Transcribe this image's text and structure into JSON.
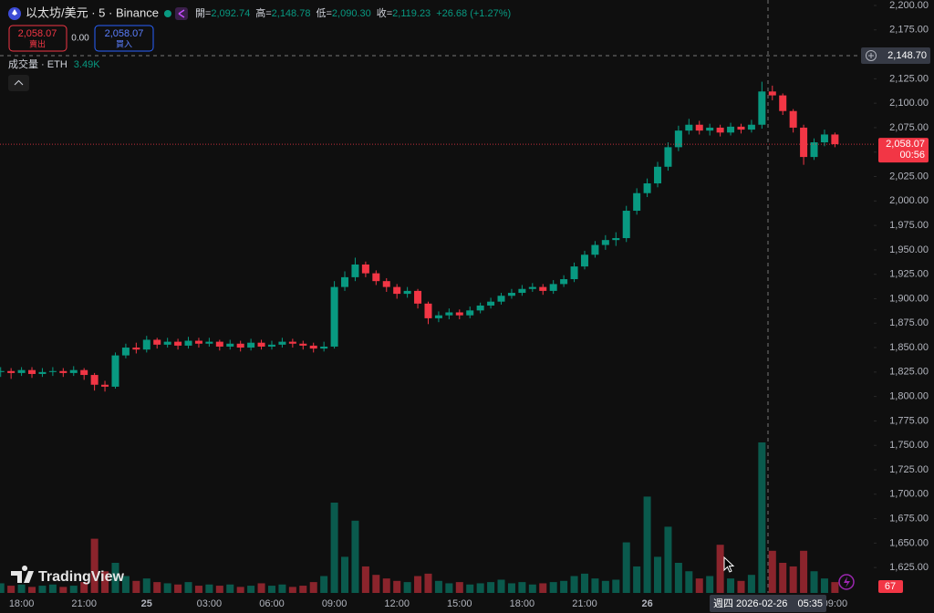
{
  "chart_data": {
    "type": "candlestick",
    "title": "以太坊/美元 · 5 · Binance",
    "header_stats": [
      {
        "label": "開=",
        "value": "2,092.74"
      },
      {
        "label": "高=",
        "value": "2,148.78"
      },
      {
        "label": "低=",
        "value": "2,090.30"
      },
      {
        "label": "收=",
        "value": "2,119.23"
      }
    ],
    "change": "+26.68 (+1.27%)",
    "sell": {
      "price": "2,058.07",
      "label": "賣出"
    },
    "spread": "0.00",
    "buy": {
      "price": "2,058.07",
      "label": "買入"
    },
    "volume_legend": {
      "label": "成交量 · ETH",
      "value": "3.49K"
    },
    "up_color": "#089981",
    "down_color": "#f23645",
    "categories": [
      null,
      null,
      "18:00",
      null,
      null,
      null,
      null,
      null,
      "21:00",
      null,
      null,
      null,
      null,
      null,
      "25",
      null,
      null,
      null,
      null,
      null,
      "03:00",
      null,
      null,
      null,
      null,
      null,
      "06:00",
      null,
      null,
      null,
      null,
      null,
      "09:00",
      null,
      null,
      null,
      null,
      null,
      "12:00",
      null,
      null,
      null,
      null,
      null,
      "15:00",
      null,
      null,
      null,
      null,
      null,
      "18:00",
      null,
      null,
      null,
      null,
      null,
      "21:00",
      null,
      null,
      null,
      null,
      null,
      "26",
      null,
      null,
      null,
      null,
      null,
      null,
      null,
      null,
      null,
      null,
      null,
      null,
      null,
      null,
      null,
      null,
      null,
      "09:00"
    ],
    "open": [
      1825,
      1826,
      1824,
      1827,
      1823,
      1825,
      1826,
      1824,
      1827,
      1822,
      1812,
      1810,
      1842,
      1850,
      1848,
      1858,
      1853,
      1856,
      1852,
      1857,
      1854,
      1856,
      1851,
      1854,
      1850,
      1855,
      1851,
      1853,
      1856,
      1854,
      1852,
      1849,
      1851,
      1912,
      1922,
      1935,
      1926,
      1918,
      1912,
      1905,
      1908,
      1895,
      1880,
      1883,
      1886,
      1883,
      1888,
      1893,
      1897,
      1903,
      1906,
      1910,
      1912,
      1908,
      1915,
      1920,
      1933,
      1945,
      1955,
      1960,
      1962,
      1990,
      2008,
      2018,
      2035,
      2055,
      2072,
      2078,
      2072,
      2075,
      2070,
      2076,
      2073,
      2078,
      2112,
      2108,
      2092,
      2075,
      2045,
      2060,
      2068
    ],
    "high": [
      1830,
      1829,
      1830,
      1830,
      1829,
      1830,
      1829,
      1831,
      1829,
      1824,
      1816,
      1845,
      1854,
      1855,
      1862,
      1860,
      1860,
      1859,
      1861,
      1860,
      1860,
      1858,
      1858,
      1857,
      1859,
      1858,
      1857,
      1860,
      1859,
      1857,
      1855,
      1856,
      1918,
      1928,
      1942,
      1938,
      1929,
      1921,
      1915,
      1912,
      1910,
      1897,
      1887,
      1890,
      1889,
      1892,
      1896,
      1901,
      1906,
      1910,
      1914,
      1916,
      1915,
      1919,
      1924,
      1937,
      1949,
      1959,
      1965,
      1968,
      1995,
      2013,
      2023,
      2040,
      2060,
      2077,
      2084,
      2082,
      2079,
      2078,
      2080,
      2079,
      2083,
      2122,
      2118,
      2110,
      2094,
      2078,
      2064,
      2073,
      2070
    ],
    "low": [
      1820,
      1818,
      1821,
      1819,
      1820,
      1821,
      1820,
      1821,
      1817,
      1806,
      1805,
      1808,
      1839,
      1844,
      1845,
      1849,
      1850,
      1848,
      1849,
      1850,
      1851,
      1847,
      1848,
      1846,
      1847,
      1848,
      1848,
      1850,
      1850,
      1848,
      1845,
      1846,
      1849,
      1908,
      1918,
      1922,
      1914,
      1907,
      1900,
      1901,
      1890,
      1874,
      1876,
      1879,
      1879,
      1880,
      1885,
      1890,
      1894,
      1900,
      1903,
      1907,
      1904,
      1905,
      1912,
      1917,
      1930,
      1942,
      1950,
      1954,
      1958,
      1986,
      2004,
      2014,
      2031,
      2051,
      2068,
      2068,
      2067,
      2066,
      2067,
      2069,
      2070,
      2074,
      2103,
      2088,
      2070,
      2037,
      2042,
      2056,
      2055
    ],
    "close": [
      1826,
      1824,
      1827,
      1823,
      1825,
      1826,
      1824,
      1827,
      1822,
      1812,
      1810,
      1842,
      1850,
      1848,
      1858,
      1853,
      1856,
      1852,
      1857,
      1854,
      1856,
      1851,
      1854,
      1850,
      1855,
      1851,
      1853,
      1856,
      1854,
      1852,
      1849,
      1851,
      1912,
      1922,
      1935,
      1926,
      1918,
      1912,
      1905,
      1908,
      1895,
      1880,
      1883,
      1886,
      1883,
      1888,
      1893,
      1897,
      1903,
      1906,
      1910,
      1912,
      1908,
      1915,
      1920,
      1933,
      1945,
      1955,
      1960,
      1962,
      1990,
      2008,
      2018,
      2035,
      2055,
      2072,
      2078,
      2072,
      2075,
      2070,
      2076,
      2073,
      2078,
      2112,
      2108,
      2092,
      2075,
      2045,
      2060,
      2068,
      2058.07
    ],
    "volume": [
      8,
      6,
      7,
      5,
      6,
      7,
      5,
      6,
      9,
      45,
      18,
      25,
      14,
      10,
      12,
      9,
      8,
      7,
      9,
      6,
      7,
      6,
      7,
      5,
      6,
      8,
      6,
      7,
      5,
      6,
      9,
      14,
      75,
      30,
      60,
      22,
      15,
      12,
      10,
      9,
      14,
      16,
      10,
      8,
      9,
      7,
      8,
      9,
      11,
      8,
      9,
      7,
      8,
      9,
      10,
      14,
      16,
      12,
      10,
      11,
      42,
      22,
      80,
      30,
      55,
      25,
      18,
      12,
      14,
      40,
      12,
      10,
      15,
      125,
      35,
      25,
      22,
      35,
      18,
      12,
      9
    ],
    "ylim": [
      1599,
      2205.6
    ],
    "yticks": [
      {
        "value": 1625,
        "label": "1,625.00"
      },
      {
        "value": 1650,
        "label": "1,650.00"
      },
      {
        "value": 1675,
        "label": "1,675.00"
      },
      {
        "value": 1700,
        "label": "1,700.00"
      },
      {
        "value": 1725,
        "label": "1,725.00"
      },
      {
        "value": 1750,
        "label": "1,750.00"
      },
      {
        "value": 1775,
        "label": "1,775.00"
      },
      {
        "value": 1800,
        "label": "1,800.00"
      },
      {
        "value": 1825,
        "label": "1,825.00"
      },
      {
        "value": 1850,
        "label": "1,850.00"
      },
      {
        "value": 1875,
        "label": "1,875.00"
      },
      {
        "value": 1900,
        "label": "1,900.00"
      },
      {
        "value": 1925,
        "label": "1,925.00"
      },
      {
        "value": 1950,
        "label": "1,950.00"
      },
      {
        "value": 1975,
        "label": "1,975.00"
      },
      {
        "value": 2000,
        "label": "2,000.00"
      },
      {
        "value": 2025,
        "label": "2,025.00"
      },
      {
        "value": 2050,
        "label": "2,050.00"
      },
      {
        "value": 2075,
        "label": "2,075.00"
      },
      {
        "value": 2100,
        "label": "2,100.00"
      },
      {
        "value": 2125,
        "label": "2,125.00"
      },
      {
        "value": 2150,
        "label": "2,150.00"
      },
      {
        "value": 2175,
        "label": "2,175.00"
      },
      {
        "value": 2200,
        "label": "2,200.00"
      }
    ],
    "current_price": {
      "value": 2058.07,
      "label": "2,058.07"
    },
    "countdown": "00:56",
    "crosshair_price": {
      "value": 2148.7,
      "label": "2,148.70"
    },
    "crosshair_time": {
      "date": "週四 2026-02-26",
      "time": "05:35"
    },
    "volume_last_label": "67",
    "watermark": "TradingView"
  }
}
